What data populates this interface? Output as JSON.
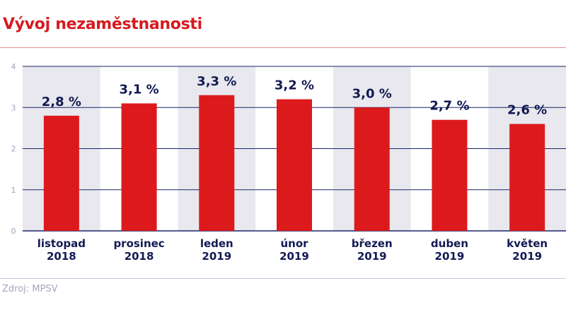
{
  "title": "Vývoj nezaměstnanosti",
  "source": "Zdroj: MPSV",
  "colors": {
    "bar": "#dc1a1c",
    "band": "#e8e8ee",
    "grid": "#1b2466",
    "label": "#121a52",
    "tick": "#9da1bb",
    "title": "#d61a1f"
  },
  "chart_data": {
    "type": "bar",
    "categories": [
      [
        "listopad",
        "2018"
      ],
      [
        "prosinec",
        "2018"
      ],
      [
        "leden",
        "2019"
      ],
      [
        "únor",
        "2019"
      ],
      [
        "březen",
        "2019"
      ],
      [
        "duben",
        "2019"
      ],
      [
        "květen",
        "2019"
      ]
    ],
    "values": [
      2.8,
      3.1,
      3.3,
      3.2,
      3.0,
      2.7,
      2.6
    ],
    "data_labels": [
      "2,8 %",
      "3,1 %",
      "3,3 %",
      "3,2 %",
      "3,0 %",
      "2,7 %",
      "2,6 %"
    ],
    "yticks": [
      "0",
      "1",
      "2",
      "3",
      "4"
    ],
    "ylim": [
      0,
      4
    ],
    "grid": true,
    "xlabel": "",
    "ylabel": ""
  }
}
